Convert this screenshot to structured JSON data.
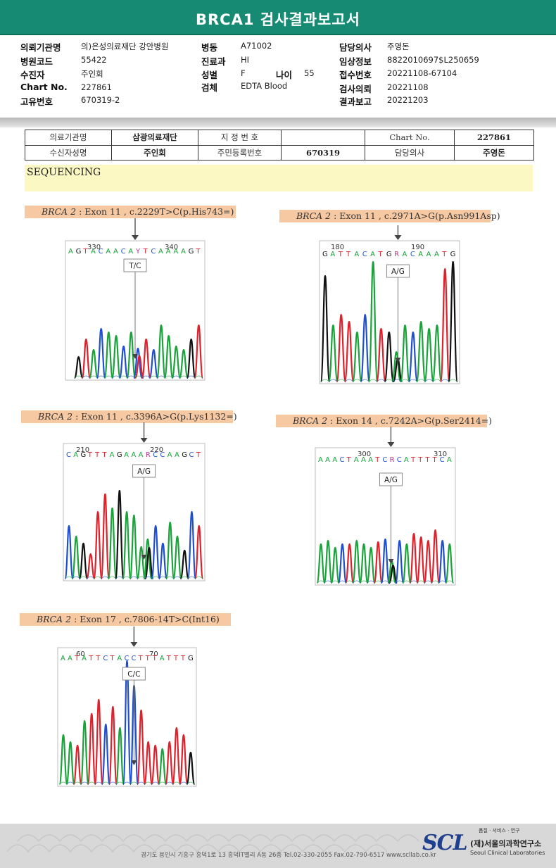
{
  "title": "BRCA1 검사결과보고서",
  "header": {
    "col1": [
      {
        "label": "의뢰기관명",
        "value": "의)은성의료재단 강안병원"
      },
      {
        "label": "병원코드",
        "value": "55422"
      },
      {
        "label": "수진자",
        "value": "주인회"
      },
      {
        "label": "Chart No.",
        "value": "227861"
      },
      {
        "label": "고유번호",
        "value": "670319-2"
      }
    ],
    "col2": [
      {
        "label": "병동",
        "value": "A71002"
      },
      {
        "label": "진료과",
        "value": "HI"
      },
      {
        "label": "성별",
        "value": "F"
      },
      {
        "label": "검체",
        "value": "EDTA Blood"
      }
    ],
    "age": {
      "label": "나이",
      "value": "55"
    },
    "col3": [
      {
        "label": "담당의사",
        "value": "주영돈"
      },
      {
        "label": "임상정보",
        "value": "8822010697$L250659"
      },
      {
        "label": "접수번호",
        "value": "20221108-67104"
      },
      {
        "label": "검사의뢰",
        "value": "20221108"
      },
      {
        "label": "결과보고",
        "value": "20221203"
      }
    ]
  },
  "request_table": {
    "r1c1": "의료기관명",
    "r1c2": "삼광의료재단",
    "r1c3": "지 정 번 호",
    "r1c4": "",
    "r2c1": "수신자성명",
    "r2c2": "주인회",
    "r2c3": "주민등록번호",
    "r2c4": "670319",
    "r1c5": "Chart No.",
    "r1c6": "227861",
    "r2c5": "담당의사",
    "r2c6": "주영돈"
  },
  "section_title": "SEQUENCING",
  "variants": [
    {
      "gene": "BRCA 2",
      "rest": " : Exon 11 , c.2229T>C(p.His743=)",
      "seq": "GTACAACAYTCAAAAGT",
      "lead": "A",
      "pos1": "330",
      "pos2": "340",
      "call": "T/C"
    },
    {
      "gene": "BRCA 2",
      "rest": " : Exon 11 , c.2971A>G(p.Asn991Asp)",
      "seq": "GATTACATGRACAAATG",
      "lead": "",
      "pos1": "180",
      "pos2": "190",
      "call": "A/G"
    },
    {
      "gene": "BRCA 2",
      "rest": " : Exon 11 , c.3396A>G(p.Lys1132=)",
      "seq": "CAGTTTAGAAARCCAAGCT",
      "lead": "",
      "pos1": "210",
      "pos2": "220",
      "call": "A/G"
    },
    {
      "gene": "BRCA 2",
      "rest": " : Exon 14 , c.7242A>G(p.Ser2414=)",
      "seq": "AAACTAAATCRCATTTTCA",
      "lead": "",
      "pos1": "300",
      "pos2": "310",
      "call": "A/G"
    },
    {
      "gene": "BRCA 2",
      "rest": " : Exon 17 , c.7806-14T>C(Int16)",
      "seq": "AATATTCTACCTTTATTTG",
      "lead": "",
      "pos1": "60",
      "pos2": "70",
      "call": "C/C"
    }
  ],
  "colors": {
    "A": "#1aa33a",
    "C": "#1f4fd0",
    "G": "#111111",
    "T": "#e0202a",
    "R": "#b8348a",
    "Y": "#b8348a",
    "band": "#178a73"
  },
  "footer": {
    "address": "경기도 용인시 기흥구 흥덕1로 13 흥덕IT밸리 A동 26층  Tel.02-330-2055  Fax.02-790-6517  www.scllab.co.kr",
    "tagline": "품질 · 서비스 · 연구",
    "logo": "SCL",
    "org_ko": "(재)서울의과학연구소",
    "org_en": "Seoul Clinical Laboratories"
  }
}
